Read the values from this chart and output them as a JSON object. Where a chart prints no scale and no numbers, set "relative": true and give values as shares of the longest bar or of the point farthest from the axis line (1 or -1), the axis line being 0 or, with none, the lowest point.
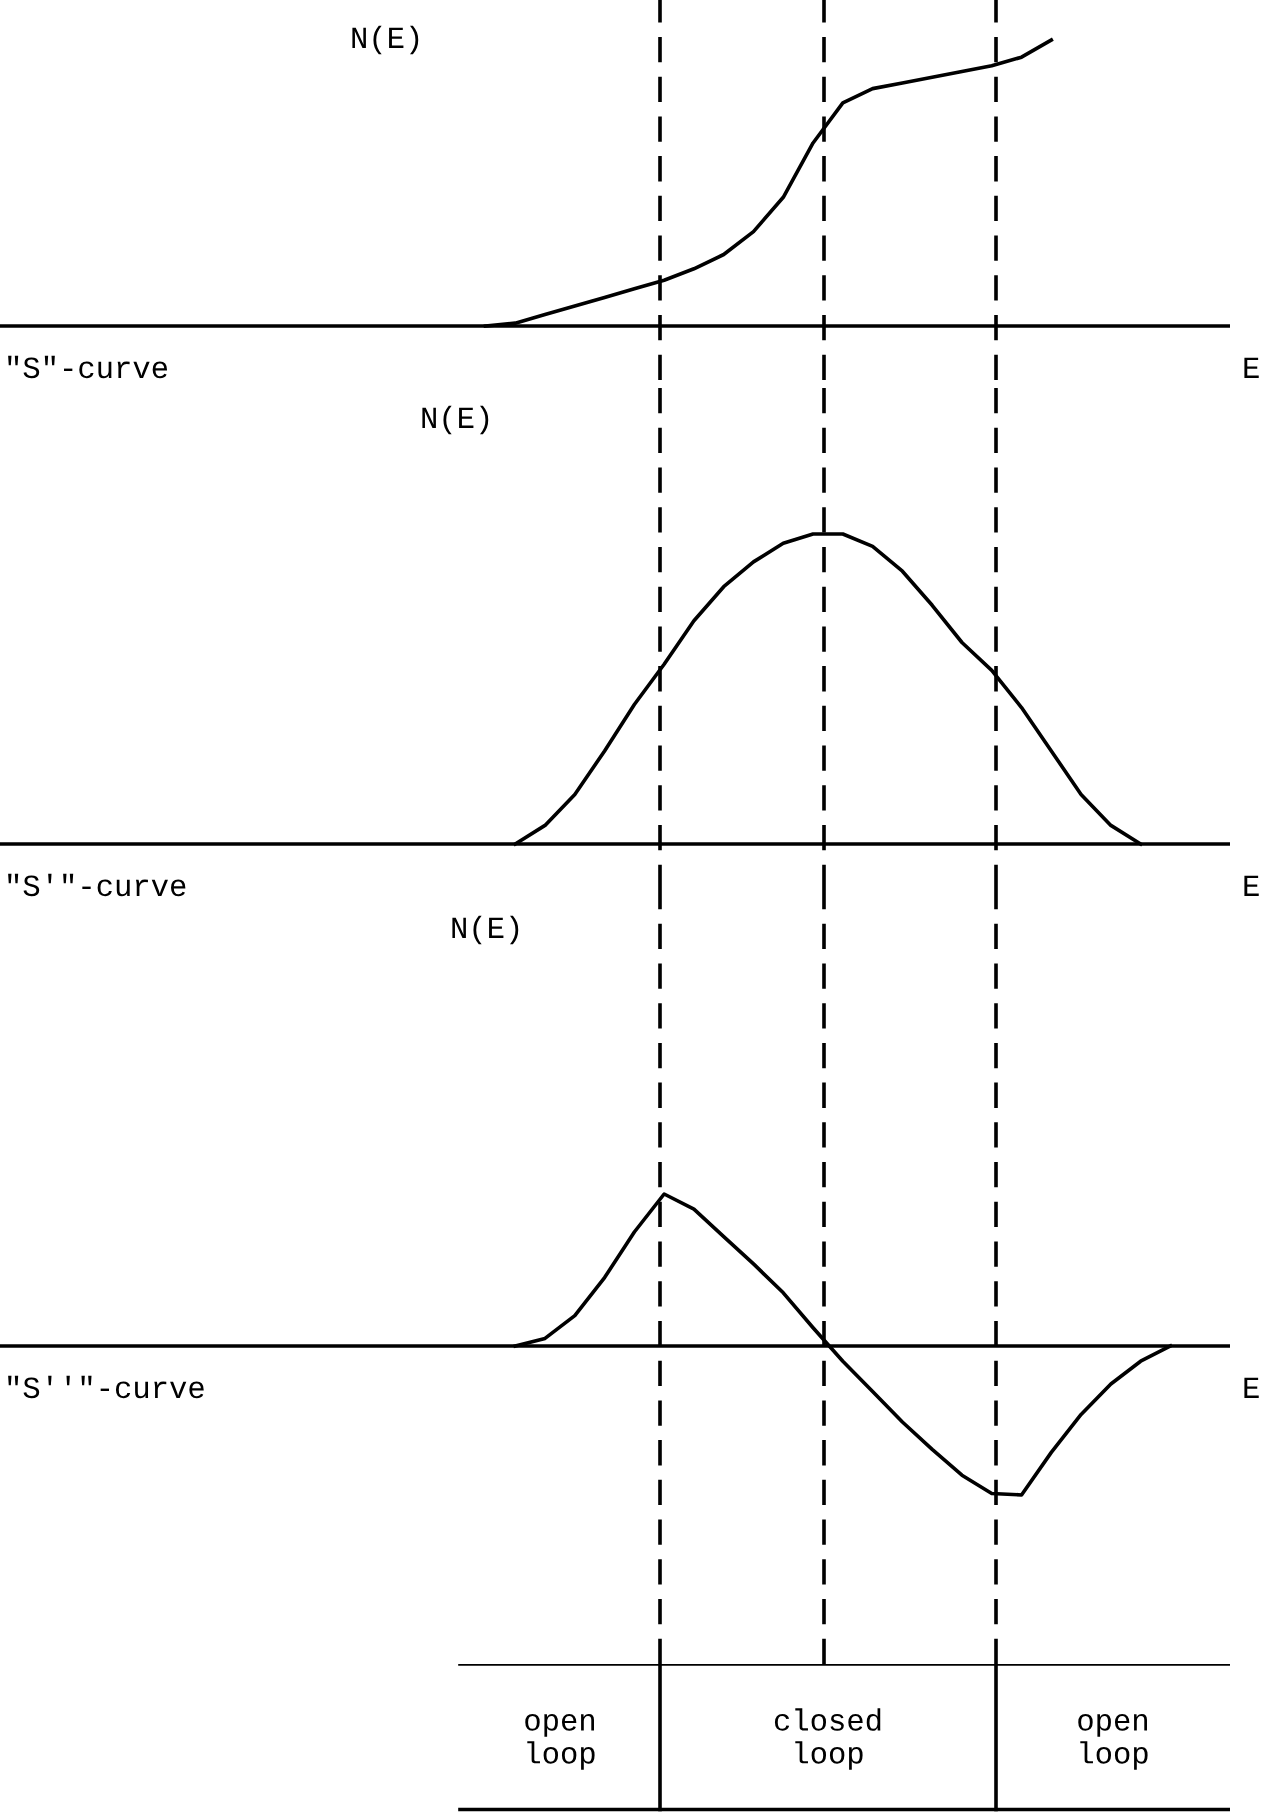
{
  "chart_data": [
    {
      "type": "line",
      "relative": true,
      "ylabel": "N(E)",
      "xlabel": "E",
      "annotations": [
        "\"S\"-curve"
      ],
      "color": "#000000",
      "categories": [
        null,
        null,
        null,
        null,
        null,
        null,
        null,
        null,
        null,
        null,
        null,
        null,
        null,
        null,
        null,
        null,
        null,
        null,
        null,
        null,
        null,
        null,
        null,
        null,
        null,
        null,
        null,
        null,
        null,
        null,
        null,
        null,
        null,
        null,
        null,
        null,
        null,
        null,
        null,
        null,
        null,
        null
      ],
      "values": [
        null,
        null,
        null,
        null,
        null,
        null,
        null,
        null,
        null,
        null,
        null,
        null,
        null,
        null,
        null,
        null,
        0,
        0.01,
        0.04,
        0.07,
        0.1,
        0.13,
        0.16,
        0.2,
        0.25,
        0.33,
        0.45,
        0.64,
        0.78,
        0.83,
        0.85,
        0.87,
        0.89,
        0.91,
        0.94,
        1,
        null,
        null,
        null,
        null,
        null,
        null
      ]
    },
    {
      "type": "line",
      "relative": true,
      "ylabel": "N(E)",
      "xlabel": "E",
      "annotations": [
        "\"S'\"-curve"
      ],
      "color": "#000000",
      "categories": [
        null,
        null,
        null,
        null,
        null,
        null,
        null,
        null,
        null,
        null,
        null,
        null,
        null,
        null,
        null,
        null,
        null,
        null,
        null,
        null,
        null,
        null,
        null,
        null,
        null,
        null,
        null,
        null,
        null,
        null,
        null,
        null,
        null,
        null,
        null,
        null,
        null,
        null,
        null,
        null,
        null,
        null
      ],
      "values": [
        null,
        null,
        null,
        null,
        null,
        null,
        null,
        null,
        null,
        null,
        null,
        null,
        null,
        null,
        null,
        null,
        null,
        0,
        0.06,
        0.16,
        0.3,
        0.45,
        0.58,
        0.72,
        0.83,
        0.91,
        0.97,
        1,
        1,
        0.96,
        0.88,
        0.77,
        0.65,
        0.56,
        0.44,
        0.3,
        0.16,
        0.06,
        0,
        null,
        null,
        null
      ]
    },
    {
      "type": "line",
      "relative": true,
      "ylabel": "N(E)",
      "xlabel": "E",
      "annotations": [
        "\"S''\"-curve",
        "open\nloop",
        "closed\nloop",
        "open\nloop"
      ],
      "color": "#000000",
      "categories": [
        null,
        null,
        null,
        null,
        null,
        null,
        null,
        null,
        null,
        null,
        null,
        null,
        null,
        null,
        null,
        null,
        null,
        null,
        null,
        null,
        null,
        null,
        null,
        null,
        null,
        null,
        null,
        null,
        null,
        null,
        null,
        null,
        null,
        null,
        null,
        null,
        null,
        null,
        null,
        null,
        null,
        null
      ],
      "values": [
        null,
        null,
        null,
        null,
        null,
        null,
        null,
        null,
        null,
        null,
        null,
        null,
        null,
        null,
        null,
        null,
        null,
        0,
        0.05,
        0.2,
        0.45,
        0.75,
        1,
        0.9,
        0.72,
        0.54,
        0.35,
        0.12,
        -0.1,
        -0.3,
        -0.5,
        -0.68,
        -0.85,
        -0.97,
        -0.98,
        -0.7,
        -0.45,
        -0.25,
        -0.1,
        0,
        null,
        null
      ]
    }
  ]
}
